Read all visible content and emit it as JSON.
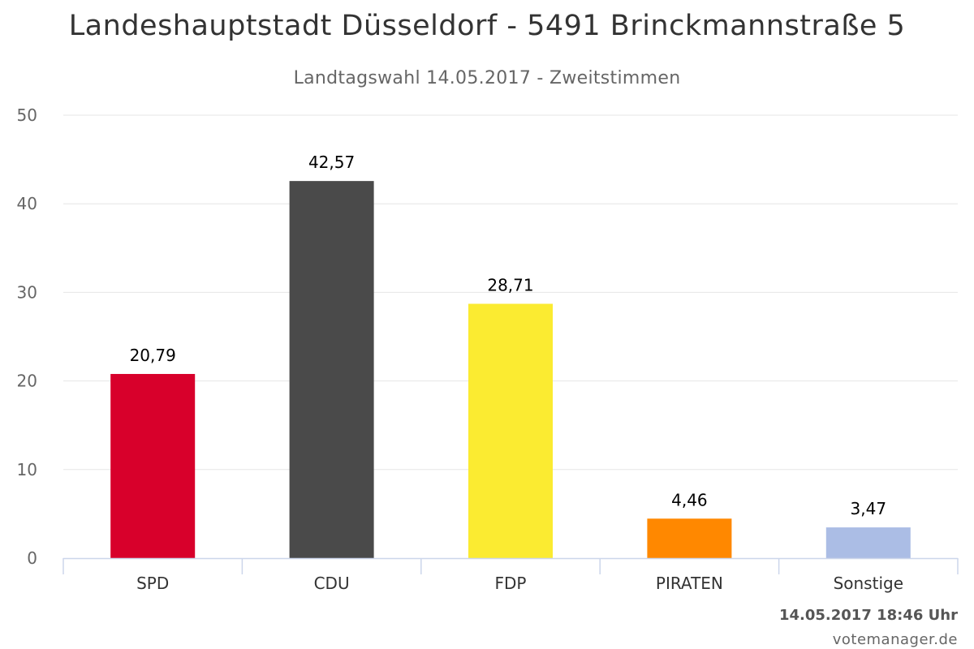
{
  "chart_data": {
    "type": "bar",
    "title": "Landeshauptstadt Düsseldorf - 5491 Brinckmannstraße 5",
    "subtitle": "Landtagswahl 14.05.2017 - Zweitstimmen",
    "categories": [
      "SPD",
      "CDU",
      "FDP",
      "PIRATEN",
      "Sonstige"
    ],
    "values": [
      20.79,
      42.57,
      28.71,
      4.46,
      3.47
    ],
    "value_labels": [
      "20,79",
      "42,57",
      "28,71",
      "4,46",
      "3,47"
    ],
    "colors": [
      "#d8002b",
      "#4a4a4a",
      "#fbeb31",
      "#ff8800",
      "#abbde5"
    ],
    "ylim": [
      0,
      50
    ],
    "yticks": [
      0,
      10,
      20,
      30,
      40,
      50
    ],
    "grid": true,
    "legend": "none"
  },
  "footer": {
    "timestamp": "14.05.2017 18:46 Uhr",
    "credit": "votemanager.de"
  }
}
